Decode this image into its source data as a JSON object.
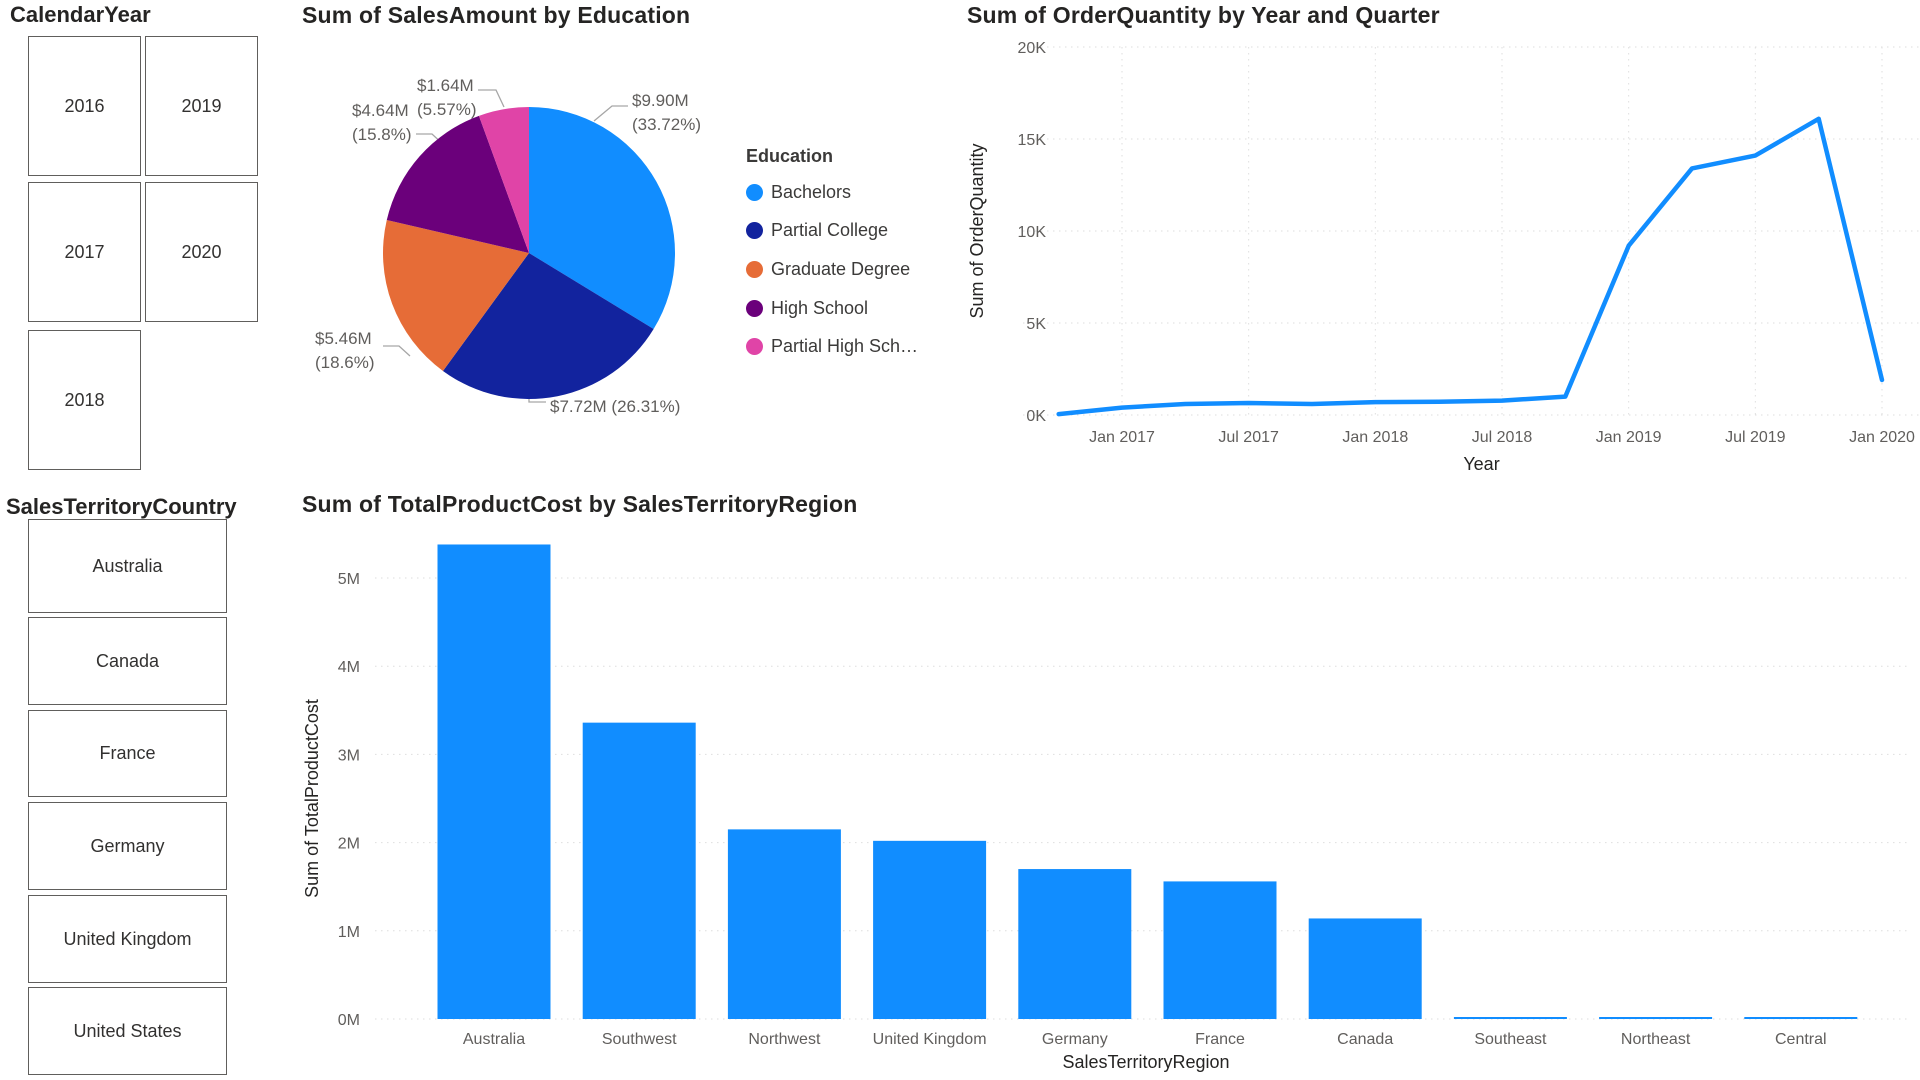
{
  "page": {
    "background": "#FFFFFF"
  },
  "colors": {
    "accent_blue": "#118DFF",
    "dark_blue": "#12239E",
    "orange": "#E66C37",
    "purple": "#6B007B",
    "pink": "#E044A7",
    "axis_tick": "#605E5C",
    "axis_title": "#252423",
    "gridline": "#DEDEDE",
    "leader_line": "#A6A6A6",
    "slicer_border": "#605E5C"
  },
  "slicers": {
    "calendar_year": {
      "title": "CalendarYear",
      "options": [
        "2016",
        "2019",
        "2017",
        "2020",
        "2018"
      ]
    },
    "sales_territory_country": {
      "title": "SalesTerritoryCountry",
      "options": [
        "Australia",
        "Canada",
        "France",
        "Germany",
        "United Kingdom",
        "United States"
      ]
    }
  },
  "chart_data": [
    {
      "id": "sales_amount_by_education",
      "type": "pie",
      "title": "Sum of SalesAmount by Education",
      "legend_title": "Education",
      "legend_position": "right",
      "slices": [
        {
          "label": "Bachelors",
          "value_text": "$9.90M",
          "pct_text": "(33.72%)",
          "pct": 33.72,
          "color": "#118DFF"
        },
        {
          "label": "Partial College",
          "value_text": "$7.72M",
          "pct_text": "(26.31%)",
          "pct": 26.31,
          "color": "#12239E"
        },
        {
          "label": "Graduate Degree",
          "value_text": "$5.46M",
          "pct_text": "(18.6%)",
          "pct": 18.6,
          "color": "#E66C37"
        },
        {
          "label": "High School",
          "value_text": "$4.64M",
          "pct_text": "(15.8%)",
          "pct": 15.8,
          "color": "#6B007B"
        },
        {
          "label": "Partial High Sch…",
          "value_text": "$1.64M",
          "pct_text": "(5.57%)",
          "pct": 5.57,
          "color": "#E044A7"
        }
      ]
    },
    {
      "id": "order_quantity_by_year_quarter",
      "type": "line",
      "title": "Sum of OrderQuantity by Year and Quarter",
      "xlabel": "Year",
      "ylabel": "Sum of OrderQuantity",
      "ylim": [
        0,
        20000
      ],
      "yticks": [
        "20K",
        "15K",
        "10K",
        "5K",
        "0K"
      ],
      "ytick_values": [
        20000,
        15000,
        10000,
        5000,
        0
      ],
      "xticks": [
        "Jan 2017",
        "Jul 2017",
        "Jan 2018",
        "Jul 2018",
        "Jan 2019",
        "Jul 2019",
        "Jan 2020"
      ],
      "x": [
        "Oct 2016",
        "Jan 2017",
        "Apr 2017",
        "Jul 2017",
        "Oct 2017",
        "Jan 2018",
        "Apr 2018",
        "Jul 2018",
        "Oct 2018",
        "Jan 2019",
        "Apr 2019",
        "Jul 2019",
        "Oct 2019",
        "Jan 2020"
      ],
      "values": [
        50,
        400,
        600,
        650,
        600,
        700,
        720,
        780,
        1000,
        9200,
        13400,
        14100,
        16100,
        1900
      ],
      "line_color": "#118DFF",
      "grid": "dotted"
    },
    {
      "id": "total_product_cost_by_region",
      "type": "bar",
      "title": "Sum of TotalProductCost by SalesTerritoryRegion",
      "xlabel": "SalesTerritoryRegion",
      "ylabel": "Sum of TotalProductCost",
      "ylim": [
        0,
        5600000
      ],
      "yticks": [
        "5M",
        "4M",
        "3M",
        "2M",
        "1M",
        "0M"
      ],
      "ytick_values": [
        5000000,
        4000000,
        3000000,
        2000000,
        1000000,
        0
      ],
      "categories": [
        "Australia",
        "Southwest",
        "Northwest",
        "United Kingdom",
        "Germany",
        "France",
        "Canada",
        "Southeast",
        "Northeast",
        "Central"
      ],
      "values": [
        5380000,
        3360000,
        2150000,
        2020000,
        1700000,
        1560000,
        1140000,
        20000,
        20000,
        15000
      ],
      "bar_color": "#118DFF",
      "grid": "dotted"
    }
  ]
}
